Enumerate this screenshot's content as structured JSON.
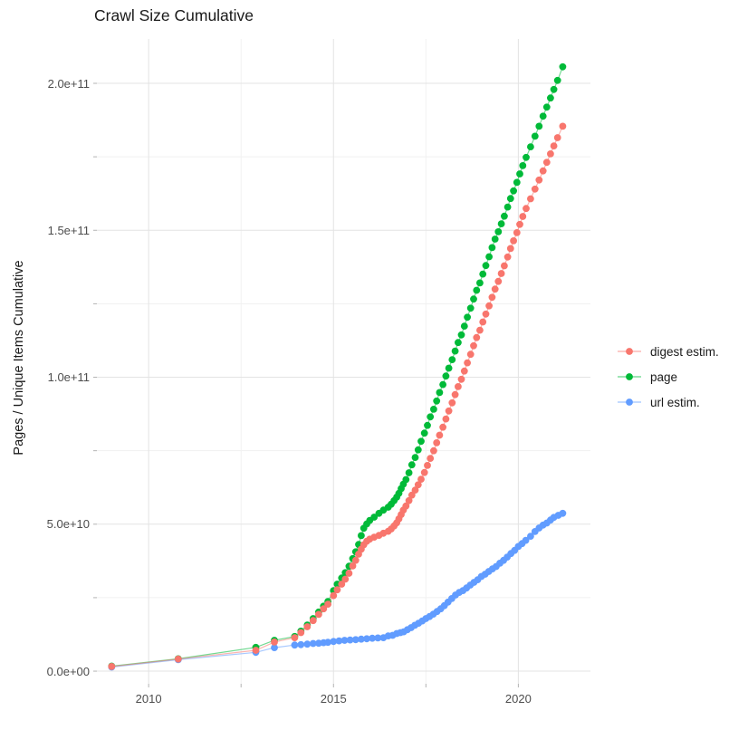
{
  "chart_data": {
    "type": "line",
    "title": "Crawl Size Cumulative",
    "xlabel": "",
    "ylabel": "Pages / Unique Items Cumulative",
    "legend_position": "right",
    "grid": true,
    "value_unit": "billions (1e9)",
    "x_axis": {
      "range": [
        2008.6,
        2021.95
      ],
      "ticks": [
        2010,
        2015,
        2020
      ],
      "tick_labels": [
        "2010",
        "2015",
        "2020"
      ],
      "minor_ticks": [
        2012.5,
        2017.5
      ]
    },
    "y_axis": {
      "range": [
        -4.3,
        215.1
      ],
      "ticks": [
        0,
        50,
        100,
        150,
        200
      ],
      "tick_labels": [
        "0.0e+00",
        "5.0e+10",
        "1.0e+11",
        "1.5e+11",
        "2.0e+11"
      ],
      "minor_ticks": [
        25,
        75,
        125,
        175
      ]
    },
    "draw_order": [
      1,
      2,
      0
    ],
    "series": [
      {
        "name": "digest estim.",
        "color": "#F8766D",
        "points": [
          [
            2009.0,
            1.6
          ],
          [
            2010.8,
            4.1
          ],
          [
            2012.9,
            7.1
          ],
          [
            2013.4,
            9.9
          ],
          [
            2013.95,
            11.4
          ],
          [
            2014.12,
            13.1
          ],
          [
            2014.29,
            15.1
          ],
          [
            2014.45,
            17.2
          ],
          [
            2014.6,
            19.3
          ],
          [
            2014.73,
            21.2
          ],
          [
            2014.85,
            22.8
          ],
          [
            2015.0,
            25.7
          ],
          [
            2015.1,
            27.7
          ],
          [
            2015.22,
            29.6
          ],
          [
            2015.32,
            31.3
          ],
          [
            2015.42,
            33.3
          ],
          [
            2015.52,
            35.8
          ],
          [
            2015.6,
            37.7
          ],
          [
            2015.68,
            39.8
          ],
          [
            2015.75,
            41.5
          ],
          [
            2015.82,
            43.0
          ],
          [
            2015.9,
            44.2
          ],
          [
            2015.98,
            44.9
          ],
          [
            2016.1,
            45.6
          ],
          [
            2016.23,
            46.2
          ],
          [
            2016.35,
            46.9
          ],
          [
            2016.48,
            47.6
          ],
          [
            2016.56,
            48.4
          ],
          [
            2016.64,
            49.4
          ],
          [
            2016.71,
            50.5
          ],
          [
            2016.77,
            51.8
          ],
          [
            2016.83,
            53.3
          ],
          [
            2016.89,
            54.8
          ],
          [
            2016.96,
            56.2
          ],
          [
            2017.04,
            58.0
          ],
          [
            2017.12,
            59.9
          ],
          [
            2017.21,
            61.6
          ],
          [
            2017.29,
            63.4
          ],
          [
            2017.37,
            65.3
          ],
          [
            2017.46,
            67.6
          ],
          [
            2017.54,
            70.0
          ],
          [
            2017.62,
            72.4
          ],
          [
            2017.71,
            75.0
          ],
          [
            2017.79,
            77.7
          ],
          [
            2017.87,
            80.3
          ],
          [
            2017.96,
            83.0
          ],
          [
            2018.04,
            85.8
          ],
          [
            2018.12,
            88.5
          ],
          [
            2018.21,
            91.3
          ],
          [
            2018.29,
            94.1
          ],
          [
            2018.37,
            96.8
          ],
          [
            2018.46,
            99.3
          ],
          [
            2018.54,
            102.1
          ],
          [
            2018.62,
            104.9
          ],
          [
            2018.71,
            107.8
          ],
          [
            2018.79,
            110.7
          ],
          [
            2018.87,
            113.5
          ],
          [
            2018.96,
            116.0
          ],
          [
            2019.04,
            118.8
          ],
          [
            2019.12,
            121.5
          ],
          [
            2019.21,
            124.3
          ],
          [
            2019.29,
            127.2
          ],
          [
            2019.37,
            130.0
          ],
          [
            2019.46,
            132.6
          ],
          [
            2019.54,
            135.3
          ],
          [
            2019.62,
            137.9
          ],
          [
            2019.71,
            140.9
          ],
          [
            2019.79,
            143.8
          ],
          [
            2019.87,
            146.4
          ],
          [
            2019.96,
            149.2
          ],
          [
            2020.04,
            152.0
          ],
          [
            2020.12,
            154.7
          ],
          [
            2020.21,
            157.4
          ],
          [
            2020.33,
            160.7
          ],
          [
            2020.45,
            164.0
          ],
          [
            2020.56,
            167.1
          ],
          [
            2020.67,
            170.2
          ],
          [
            2020.77,
            173.1
          ],
          [
            2020.87,
            176.0
          ],
          [
            2020.96,
            178.7
          ],
          [
            2021.06,
            181.5
          ],
          [
            2021.2,
            185.4
          ]
        ]
      },
      {
        "name": "page",
        "color": "#00BA38",
        "points": [
          [
            2009.0,
            1.7
          ],
          [
            2010.8,
            4.2
          ],
          [
            2012.9,
            8.1
          ],
          [
            2013.4,
            10.5
          ],
          [
            2013.95,
            11.8
          ],
          [
            2014.12,
            13.6
          ],
          [
            2014.29,
            15.7
          ],
          [
            2014.45,
            17.9
          ],
          [
            2014.6,
            20.1
          ],
          [
            2014.73,
            22.1
          ],
          [
            2014.85,
            23.7
          ],
          [
            2015.0,
            27.4
          ],
          [
            2015.1,
            29.6
          ],
          [
            2015.22,
            31.7
          ],
          [
            2015.32,
            33.5
          ],
          [
            2015.42,
            35.7
          ],
          [
            2015.52,
            38.3
          ],
          [
            2015.6,
            40.6
          ],
          [
            2015.68,
            43.1
          ],
          [
            2015.75,
            46.1
          ],
          [
            2015.82,
            48.6
          ],
          [
            2015.9,
            50.1
          ],
          [
            2015.98,
            51.3
          ],
          [
            2016.1,
            52.4
          ],
          [
            2016.23,
            53.7
          ],
          [
            2016.35,
            54.8
          ],
          [
            2016.48,
            55.8
          ],
          [
            2016.56,
            56.8
          ],
          [
            2016.64,
            58.0
          ],
          [
            2016.71,
            59.2
          ],
          [
            2016.77,
            60.5
          ],
          [
            2016.83,
            62.1
          ],
          [
            2016.89,
            63.6
          ],
          [
            2016.96,
            65.2
          ],
          [
            2017.04,
            67.5
          ],
          [
            2017.12,
            70.2
          ],
          [
            2017.21,
            72.7
          ],
          [
            2017.29,
            75.3
          ],
          [
            2017.37,
            78.2
          ],
          [
            2017.46,
            81.0
          ],
          [
            2017.54,
            83.6
          ],
          [
            2017.62,
            86.5
          ],
          [
            2017.71,
            89.1
          ],
          [
            2017.79,
            91.9
          ],
          [
            2017.87,
            94.8
          ],
          [
            2017.96,
            97.5
          ],
          [
            2018.04,
            100.4
          ],
          [
            2018.12,
            103.1
          ],
          [
            2018.21,
            106.0
          ],
          [
            2018.29,
            108.9
          ],
          [
            2018.37,
            111.8
          ],
          [
            2018.46,
            114.4
          ],
          [
            2018.54,
            117.4
          ],
          [
            2018.62,
            120.4
          ],
          [
            2018.71,
            123.5
          ],
          [
            2018.79,
            126.6
          ],
          [
            2018.87,
            129.6
          ],
          [
            2018.96,
            132.1
          ],
          [
            2019.04,
            135.1
          ],
          [
            2019.12,
            138.0
          ],
          [
            2019.21,
            141.0
          ],
          [
            2019.29,
            144.1
          ],
          [
            2019.37,
            147.0
          ],
          [
            2019.46,
            149.5
          ],
          [
            2019.54,
            152.2
          ],
          [
            2019.62,
            154.8
          ],
          [
            2019.71,
            157.9
          ],
          [
            2019.79,
            160.8
          ],
          [
            2019.87,
            163.4
          ],
          [
            2019.96,
            166.3
          ],
          [
            2020.04,
            169.2
          ],
          [
            2020.12,
            172.0
          ],
          [
            2020.21,
            174.8
          ],
          [
            2020.33,
            178.4
          ],
          [
            2020.45,
            182.0
          ],
          [
            2020.56,
            185.4
          ],
          [
            2020.67,
            188.8
          ],
          [
            2020.77,
            191.9
          ],
          [
            2020.87,
            195.0
          ],
          [
            2020.96,
            197.9
          ],
          [
            2021.06,
            201.0
          ],
          [
            2021.2,
            205.6
          ]
        ]
      },
      {
        "name": "url estim.",
        "color": "#619CFF",
        "points": [
          [
            2009.0,
            1.4
          ],
          [
            2010.8,
            3.9
          ],
          [
            2012.9,
            6.4
          ],
          [
            2013.4,
            8.0
          ],
          [
            2013.95,
            8.9
          ],
          [
            2014.12,
            9.0
          ],
          [
            2014.29,
            9.2
          ],
          [
            2014.45,
            9.4
          ],
          [
            2014.6,
            9.5
          ],
          [
            2014.73,
            9.7
          ],
          [
            2014.85,
            9.8
          ],
          [
            2015.0,
            10.1
          ],
          [
            2015.15,
            10.3
          ],
          [
            2015.3,
            10.5
          ],
          [
            2015.45,
            10.6
          ],
          [
            2015.6,
            10.7
          ],
          [
            2015.75,
            10.9
          ],
          [
            2015.9,
            11.0
          ],
          [
            2016.05,
            11.2
          ],
          [
            2016.2,
            11.3
          ],
          [
            2016.35,
            11.4
          ],
          [
            2016.48,
            12.0
          ],
          [
            2016.6,
            12.2
          ],
          [
            2016.71,
            12.8
          ],
          [
            2016.81,
            13.1
          ],
          [
            2016.9,
            13.4
          ],
          [
            2017.0,
            14.1
          ],
          [
            2017.1,
            14.8
          ],
          [
            2017.2,
            15.6
          ],
          [
            2017.3,
            16.3
          ],
          [
            2017.4,
            17.1
          ],
          [
            2017.5,
            17.9
          ],
          [
            2017.6,
            18.6
          ],
          [
            2017.7,
            19.4
          ],
          [
            2017.8,
            20.3
          ],
          [
            2017.9,
            21.2
          ],
          [
            2018.0,
            22.3
          ],
          [
            2018.1,
            23.5
          ],
          [
            2018.2,
            24.7
          ],
          [
            2018.3,
            25.9
          ],
          [
            2018.4,
            26.8
          ],
          [
            2018.5,
            27.4
          ],
          [
            2018.6,
            28.3
          ],
          [
            2018.7,
            29.3
          ],
          [
            2018.8,
            30.2
          ],
          [
            2018.9,
            31.1
          ],
          [
            2019.0,
            32.2
          ],
          [
            2019.1,
            33.0
          ],
          [
            2019.2,
            33.9
          ],
          [
            2019.3,
            34.8
          ],
          [
            2019.4,
            35.6
          ],
          [
            2019.5,
            36.7
          ],
          [
            2019.6,
            37.7
          ],
          [
            2019.7,
            38.8
          ],
          [
            2019.8,
            40.0
          ],
          [
            2019.9,
            41.1
          ],
          [
            2020.0,
            42.4
          ],
          [
            2020.1,
            43.4
          ],
          [
            2020.2,
            44.5
          ],
          [
            2020.33,
            45.9
          ],
          [
            2020.45,
            47.5
          ],
          [
            2020.56,
            48.7
          ],
          [
            2020.67,
            49.7
          ],
          [
            2020.77,
            50.4
          ],
          [
            2020.87,
            51.4
          ],
          [
            2020.96,
            52.3
          ],
          [
            2021.08,
            53.0
          ],
          [
            2021.2,
            53.7
          ]
        ]
      }
    ],
    "style": {
      "grid_major_color": "#e3e3e3",
      "grid_minor_color": "#f1f1f1",
      "tick_mark_color": "#b3b3b3",
      "point_radius": 3.9,
      "line_opacity": 0.55
    }
  }
}
